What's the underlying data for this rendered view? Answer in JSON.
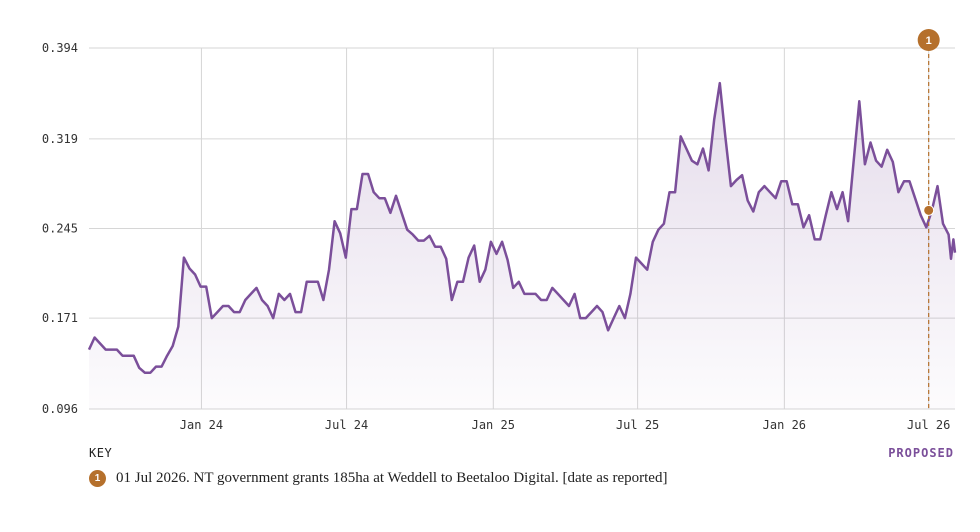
{
  "chart_data": {
    "type": "area",
    "yticks": [
      "0.096",
      "0.171",
      "0.245",
      "0.319",
      "0.394"
    ],
    "ylim": [
      0.096,
      0.394
    ],
    "xticks": [
      {
        "label": "Jan 24",
        "x": "2024-01-01"
      },
      {
        "label": "Jul 24",
        "x": "2024-07-01"
      },
      {
        "label": "Jan 25",
        "x": "2025-01-01"
      },
      {
        "label": "Jul 25",
        "x": "2025-07-01"
      },
      {
        "label": "Jan 26",
        "x": "2026-01-01"
      },
      {
        "label": "Jul 26",
        "x": "2026-07-01"
      }
    ],
    "xlim": [
      "2023-08-13",
      "2026-08-03"
    ],
    "grid": true,
    "series": [
      {
        "color": "#7b4f9a",
        "points": [
          [
            "2023-08-13",
            0.145
          ],
          [
            "2023-08-20",
            0.155
          ],
          [
            "2023-08-27",
            0.15
          ],
          [
            "2023-09-03",
            0.145
          ],
          [
            "2023-09-10",
            0.145
          ],
          [
            "2023-09-17",
            0.145
          ],
          [
            "2023-09-24",
            0.14
          ],
          [
            "2023-10-01",
            0.14
          ],
          [
            "2023-10-08",
            0.14
          ],
          [
            "2023-10-15",
            0.13
          ],
          [
            "2023-10-22",
            0.126
          ],
          [
            "2023-10-29",
            0.126
          ],
          [
            "2023-11-05",
            0.131
          ],
          [
            "2023-11-12",
            0.131
          ],
          [
            "2023-11-19",
            0.14
          ],
          [
            "2023-11-26",
            0.148
          ],
          [
            "2023-12-03",
            0.164
          ],
          [
            "2023-12-10",
            0.221
          ],
          [
            "2023-12-17",
            0.212
          ],
          [
            "2023-12-24",
            0.207
          ],
          [
            "2023-12-31",
            0.197
          ],
          [
            "2024-01-07",
            0.197
          ],
          [
            "2024-01-14",
            0.171
          ],
          [
            "2024-01-21",
            0.176
          ],
          [
            "2024-01-28",
            0.181
          ],
          [
            "2024-02-04",
            0.181
          ],
          [
            "2024-02-11",
            0.176
          ],
          [
            "2024-02-18",
            0.176
          ],
          [
            "2024-02-25",
            0.186
          ],
          [
            "2024-03-03",
            0.191
          ],
          [
            "2024-03-10",
            0.196
          ],
          [
            "2024-03-17",
            0.186
          ],
          [
            "2024-03-24",
            0.181
          ],
          [
            "2024-03-31",
            0.171
          ],
          [
            "2024-04-07",
            0.191
          ],
          [
            "2024-04-14",
            0.186
          ],
          [
            "2024-04-21",
            0.191
          ],
          [
            "2024-04-28",
            0.176
          ],
          [
            "2024-05-05",
            0.176
          ],
          [
            "2024-05-12",
            0.201
          ],
          [
            "2024-05-19",
            0.201
          ],
          [
            "2024-05-26",
            0.201
          ],
          [
            "2024-06-02",
            0.186
          ],
          [
            "2024-06-09",
            0.211
          ],
          [
            "2024-06-16",
            0.251
          ],
          [
            "2024-06-23",
            0.241
          ],
          [
            "2024-06-30",
            0.221
          ],
          [
            "2024-07-07",
            0.261
          ],
          [
            "2024-07-14",
            0.261
          ],
          [
            "2024-07-21",
            0.29
          ],
          [
            "2024-07-28",
            0.29
          ],
          [
            "2024-08-04",
            0.275
          ],
          [
            "2024-08-11",
            0.27
          ],
          [
            "2024-08-18",
            0.27
          ],
          [
            "2024-08-25",
            0.258
          ],
          [
            "2024-09-01",
            0.272
          ],
          [
            "2024-09-08",
            0.258
          ],
          [
            "2024-09-15",
            0.244
          ],
          [
            "2024-09-22",
            0.24
          ],
          [
            "2024-09-29",
            0.235
          ],
          [
            "2024-10-06",
            0.235
          ],
          [
            "2024-10-13",
            0.239
          ],
          [
            "2024-10-20",
            0.23
          ],
          [
            "2024-10-27",
            0.23
          ],
          [
            "2024-11-03",
            0.22
          ],
          [
            "2024-11-10",
            0.186
          ],
          [
            "2024-11-17",
            0.201
          ],
          [
            "2024-11-24",
            0.201
          ],
          [
            "2024-12-01",
            0.221
          ],
          [
            "2024-12-08",
            0.231
          ],
          [
            "2024-12-15",
            0.201
          ],
          [
            "2024-12-22",
            0.211
          ],
          [
            "2024-12-29",
            0.234
          ],
          [
            "2025-01-05",
            0.224
          ],
          [
            "2025-01-12",
            0.234
          ],
          [
            "2025-01-19",
            0.219
          ],
          [
            "2025-01-26",
            0.196
          ],
          [
            "2025-02-02",
            0.201
          ],
          [
            "2025-02-09",
            0.191
          ],
          [
            "2025-02-16",
            0.191
          ],
          [
            "2025-02-23",
            0.191
          ],
          [
            "2025-03-02",
            0.186
          ],
          [
            "2025-03-09",
            0.186
          ],
          [
            "2025-03-16",
            0.196
          ],
          [
            "2025-03-23",
            0.191
          ],
          [
            "2025-03-30",
            0.186
          ],
          [
            "2025-04-06",
            0.181
          ],
          [
            "2025-04-13",
            0.191
          ],
          [
            "2025-04-20",
            0.171
          ],
          [
            "2025-04-27",
            0.171
          ],
          [
            "2025-05-04",
            0.176
          ],
          [
            "2025-05-11",
            0.181
          ],
          [
            "2025-05-18",
            0.176
          ],
          [
            "2025-05-25",
            0.161
          ],
          [
            "2025-06-01",
            0.171
          ],
          [
            "2025-06-08",
            0.181
          ],
          [
            "2025-06-15",
            0.171
          ],
          [
            "2025-06-22",
            0.191
          ],
          [
            "2025-06-29",
            0.221
          ],
          [
            "2025-07-06",
            0.216
          ],
          [
            "2025-07-13",
            0.211
          ],
          [
            "2025-07-20",
            0.234
          ],
          [
            "2025-07-27",
            0.244
          ],
          [
            "2025-08-03",
            0.249
          ],
          [
            "2025-08-10",
            0.275
          ],
          [
            "2025-08-17",
            0.275
          ],
          [
            "2025-08-24",
            0.321
          ],
          [
            "2025-08-31",
            0.311
          ],
          [
            "2025-09-07",
            0.301
          ],
          [
            "2025-09-14",
            0.298
          ],
          [
            "2025-09-21",
            0.311
          ],
          [
            "2025-09-28",
            0.293
          ],
          [
            "2025-10-05",
            0.335
          ],
          [
            "2025-10-12",
            0.365
          ],
          [
            "2025-10-19",
            0.321
          ],
          [
            "2025-10-26",
            0.28
          ],
          [
            "2025-11-02",
            0.285
          ],
          [
            "2025-11-09",
            0.289
          ],
          [
            "2025-11-16",
            0.268
          ],
          [
            "2025-11-23",
            0.259
          ],
          [
            "2025-11-30",
            0.275
          ],
          [
            "2025-12-07",
            0.28
          ],
          [
            "2025-12-14",
            0.275
          ],
          [
            "2025-12-21",
            0.27
          ],
          [
            "2025-12-28",
            0.284
          ],
          [
            "2026-01-04",
            0.284
          ],
          [
            "2026-01-11",
            0.265
          ],
          [
            "2026-01-18",
            0.265
          ],
          [
            "2026-01-25",
            0.246
          ],
          [
            "2026-02-01",
            0.256
          ],
          [
            "2026-02-08",
            0.236
          ],
          [
            "2026-02-15",
            0.236
          ],
          [
            "2026-02-22",
            0.256
          ],
          [
            "2026-03-01",
            0.275
          ],
          [
            "2026-03-08",
            0.261
          ],
          [
            "2026-03-15",
            0.275
          ],
          [
            "2026-03-22",
            0.251
          ],
          [
            "2026-03-29",
            0.301
          ],
          [
            "2026-04-05",
            0.35
          ],
          [
            "2026-04-12",
            0.298
          ],
          [
            "2026-04-19",
            0.316
          ],
          [
            "2026-04-26",
            0.301
          ],
          [
            "2026-05-03",
            0.296
          ],
          [
            "2026-05-10",
            0.31
          ],
          [
            "2026-05-17",
            0.3
          ],
          [
            "2026-05-24",
            0.275
          ],
          [
            "2026-05-31",
            0.284
          ],
          [
            "2026-06-07",
            0.284
          ],
          [
            "2026-06-14",
            0.27
          ],
          [
            "2026-06-21",
            0.256
          ],
          [
            "2026-06-28",
            0.246
          ],
          [
            "2026-07-05",
            0.26
          ],
          [
            "2026-07-12",
            0.28
          ],
          [
            "2026-07-19",
            0.249
          ],
          [
            "2026-07-26",
            0.24
          ],
          [
            "2026-07-29",
            0.22
          ],
          [
            "2026-08-01",
            0.236
          ],
          [
            "2026-08-03",
            0.225
          ]
        ]
      }
    ],
    "annotations": [
      {
        "id": "1",
        "x": "2026-07-01",
        "y": 0.26,
        "color": "#b5702c"
      }
    ]
  },
  "key": {
    "title": "KEY",
    "status": "PROPOSED",
    "items": [
      {
        "badge": "1",
        "text": "01 Jul 2026. NT government grants 185ha at Weddell to Beetaloo Digital. [date as reported]",
        "color": "#b5702c"
      }
    ]
  }
}
